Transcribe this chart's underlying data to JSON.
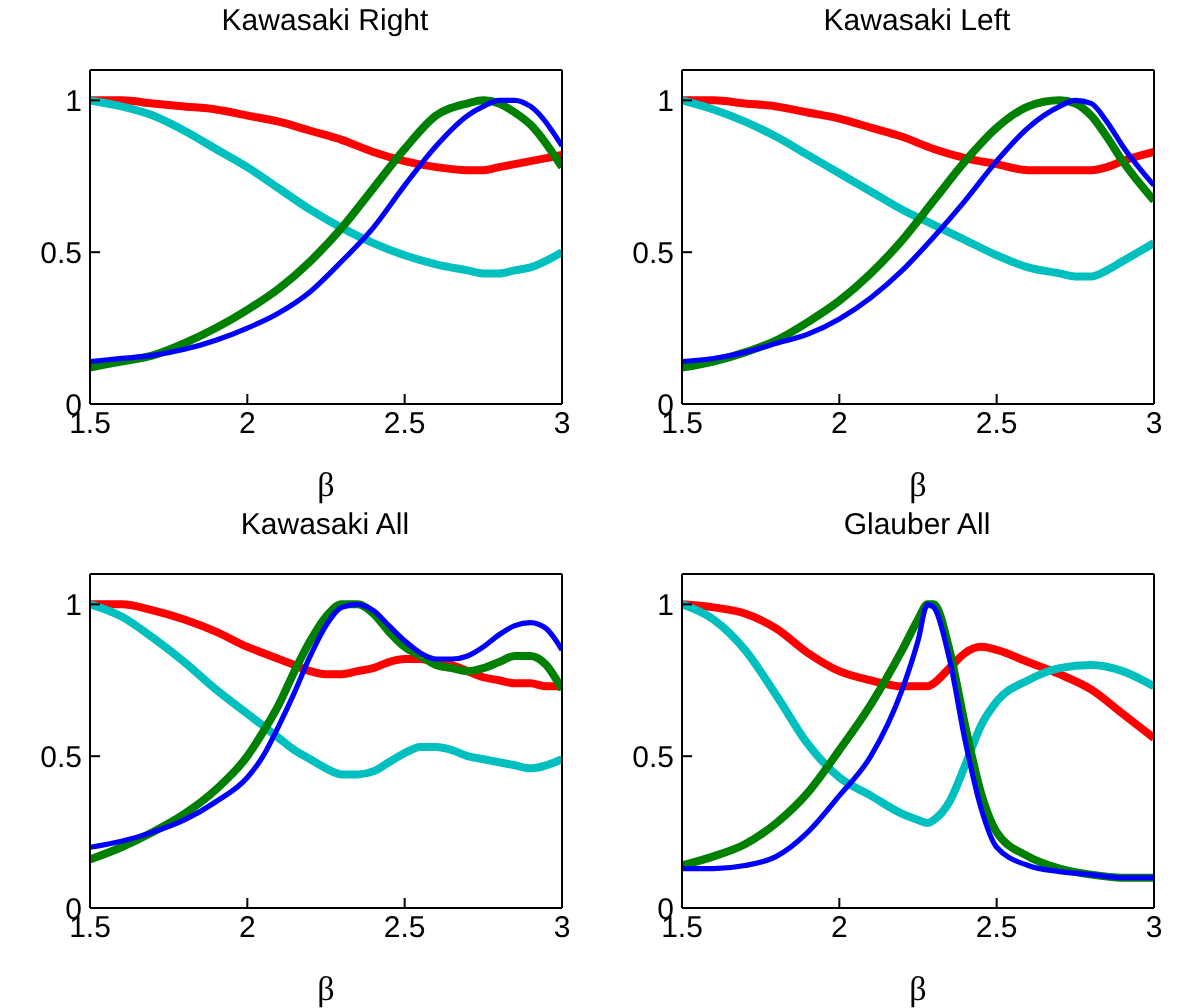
{
  "chart_data": [
    {
      "type": "line",
      "title": "Kawasaki Right",
      "xlabel": "β",
      "xlim": [
        1.5,
        3
      ],
      "xticks": [
        1.5,
        2,
        2.5,
        3
      ],
      "ylim": [
        0,
        1.1
      ],
      "yticks": [
        0,
        0.5,
        1
      ],
      "grid": false,
      "legend": false,
      "marker": "none",
      "line_style": "solid",
      "x": [
        1.5,
        1.6,
        1.7,
        1.8,
        1.9,
        2.0,
        2.1,
        2.2,
        2.3,
        2.4,
        2.5,
        2.6,
        2.7,
        2.75,
        2.8,
        2.85,
        2.9,
        3.0
      ],
      "series": [
        {
          "color": "#ff0000",
          "values": [
            1,
            1,
            0.99,
            0.98,
            0.97,
            0.95,
            0.93,
            0.9,
            0.87,
            0.83,
            0.8,
            0.78,
            0.77,
            0.77,
            0.78,
            0.79,
            0.8,
            0.82
          ]
        },
        {
          "color": "#00bfbf",
          "values": [
            1,
            0.98,
            0.95,
            0.9,
            0.84,
            0.78,
            0.71,
            0.64,
            0.58,
            0.53,
            0.49,
            0.46,
            0.44,
            0.43,
            0.43,
            0.44,
            0.45,
            0.5
          ]
        },
        {
          "color": "#008000",
          "values": [
            0.12,
            0.14,
            0.16,
            0.2,
            0.25,
            0.31,
            0.38,
            0.47,
            0.58,
            0.71,
            0.84,
            0.95,
            0.99,
            1,
            0.99,
            0.96,
            0.92,
            0.78
          ]
        },
        {
          "color": "#0000ff",
          "values": [
            0.14,
            0.15,
            0.16,
            0.18,
            0.21,
            0.25,
            0.3,
            0.37,
            0.47,
            0.58,
            0.72,
            0.85,
            0.95,
            0.98,
            1,
            1,
            0.98,
            0.85
          ]
        }
      ]
    },
    {
      "type": "line",
      "title": "Kawasaki Left",
      "xlabel": "β",
      "xlim": [
        1.5,
        3
      ],
      "xticks": [
        1.5,
        2,
        2.5,
        3
      ],
      "ylim": [
        0,
        1.1
      ],
      "yticks": [
        0,
        0.5,
        1
      ],
      "grid": false,
      "legend": false,
      "marker": "none",
      "line_style": "solid",
      "x": [
        1.5,
        1.6,
        1.7,
        1.8,
        1.9,
        2.0,
        2.1,
        2.2,
        2.3,
        2.4,
        2.5,
        2.6,
        2.7,
        2.75,
        2.8,
        2.85,
        2.9,
        3.0
      ],
      "series": [
        {
          "color": "#ff0000",
          "values": [
            1,
            1,
            0.99,
            0.98,
            0.96,
            0.94,
            0.91,
            0.88,
            0.84,
            0.81,
            0.79,
            0.77,
            0.77,
            0.77,
            0.77,
            0.78,
            0.8,
            0.83
          ]
        },
        {
          "color": "#00bfbf",
          "values": [
            1,
            0.97,
            0.93,
            0.88,
            0.82,
            0.76,
            0.7,
            0.64,
            0.59,
            0.54,
            0.49,
            0.45,
            0.43,
            0.42,
            0.42,
            0.44,
            0.47,
            0.53
          ]
        },
        {
          "color": "#008000",
          "values": [
            0.12,
            0.14,
            0.17,
            0.21,
            0.27,
            0.34,
            0.43,
            0.54,
            0.67,
            0.8,
            0.91,
            0.98,
            1,
            0.99,
            0.95,
            0.88,
            0.8,
            0.67
          ]
        },
        {
          "color": "#0000ff",
          "values": [
            0.14,
            0.15,
            0.17,
            0.2,
            0.23,
            0.28,
            0.35,
            0.44,
            0.55,
            0.67,
            0.8,
            0.91,
            0.98,
            1,
            0.99,
            0.93,
            0.85,
            0.72
          ]
        }
      ]
    },
    {
      "type": "line",
      "title": "Kawasaki All",
      "xlabel": "β",
      "xlim": [
        1.5,
        3
      ],
      "xticks": [
        1.5,
        2,
        2.5,
        3
      ],
      "ylim": [
        0,
        1.1
      ],
      "yticks": [
        0,
        0.5,
        1
      ],
      "grid": false,
      "legend": false,
      "marker": "none",
      "line_style": "solid",
      "x": [
        1.5,
        1.6,
        1.7,
        1.8,
        1.9,
        2.0,
        2.05,
        2.1,
        2.15,
        2.2,
        2.25,
        2.3,
        2.35,
        2.4,
        2.45,
        2.5,
        2.55,
        2.6,
        2.65,
        2.7,
        2.75,
        2.8,
        2.85,
        2.9,
        2.95,
        3.0
      ],
      "series": [
        {
          "color": "#ff0000",
          "values": [
            1,
            1,
            0.98,
            0.95,
            0.91,
            0.86,
            0.84,
            0.82,
            0.8,
            0.78,
            0.77,
            0.77,
            0.78,
            0.79,
            0.81,
            0.82,
            0.82,
            0.81,
            0.8,
            0.78,
            0.76,
            0.75,
            0.74,
            0.74,
            0.73,
            0.73
          ]
        },
        {
          "color": "#00bfbf",
          "values": [
            1,
            0.96,
            0.89,
            0.81,
            0.72,
            0.64,
            0.6,
            0.56,
            0.52,
            0.49,
            0.46,
            0.44,
            0.44,
            0.45,
            0.48,
            0.51,
            0.53,
            0.53,
            0.52,
            0.5,
            0.49,
            0.48,
            0.47,
            0.46,
            0.47,
            0.49
          ]
        },
        {
          "color": "#008000",
          "values": [
            0.16,
            0.2,
            0.25,
            0.31,
            0.39,
            0.5,
            0.58,
            0.67,
            0.78,
            0.88,
            0.96,
            1,
            1,
            0.97,
            0.91,
            0.86,
            0.83,
            0.8,
            0.79,
            0.78,
            0.79,
            0.81,
            0.83,
            0.83,
            0.8,
            0.72
          ]
        },
        {
          "color": "#0000ff",
          "values": [
            0.2,
            0.22,
            0.25,
            0.29,
            0.35,
            0.43,
            0.5,
            0.6,
            0.71,
            0.83,
            0.93,
            0.99,
            1,
            0.98,
            0.93,
            0.88,
            0.84,
            0.82,
            0.82,
            0.83,
            0.86,
            0.9,
            0.93,
            0.94,
            0.92,
            0.85
          ]
        }
      ]
    },
    {
      "type": "line",
      "title": "Glauber All",
      "xlabel": "β",
      "xlim": [
        1.5,
        3
      ],
      "xticks": [
        1.5,
        2,
        2.5,
        3
      ],
      "ylim": [
        0,
        1.1
      ],
      "yticks": [
        0,
        0.5,
        1
      ],
      "grid": false,
      "legend": false,
      "marker": "none",
      "line_style": "solid",
      "x": [
        1.5,
        1.6,
        1.7,
        1.8,
        1.9,
        2.0,
        2.1,
        2.2,
        2.25,
        2.28,
        2.3,
        2.35,
        2.4,
        2.45,
        2.5,
        2.6,
        2.7,
        2.8,
        2.9,
        3.0
      ],
      "series": [
        {
          "color": "#ff0000",
          "values": [
            1,
            0.99,
            0.97,
            0.92,
            0.84,
            0.78,
            0.75,
            0.73,
            0.73,
            0.73,
            0.74,
            0.79,
            0.84,
            0.86,
            0.85,
            0.81,
            0.77,
            0.72,
            0.64,
            0.56
          ]
        },
        {
          "color": "#00bfbf",
          "values": [
            1,
            0.95,
            0.85,
            0.7,
            0.54,
            0.43,
            0.37,
            0.31,
            0.29,
            0.28,
            0.29,
            0.35,
            0.47,
            0.6,
            0.68,
            0.75,
            0.79,
            0.8,
            0.78,
            0.73
          ]
        },
        {
          "color": "#008000",
          "values": [
            0.14,
            0.17,
            0.21,
            0.28,
            0.38,
            0.52,
            0.67,
            0.85,
            0.95,
            1,
            1,
            0.85,
            0.6,
            0.38,
            0.25,
            0.17,
            0.13,
            0.11,
            0.1,
            0.1
          ]
        },
        {
          "color": "#0000ff",
          "values": [
            0.13,
            0.13,
            0.14,
            0.17,
            0.25,
            0.37,
            0.5,
            0.72,
            0.88,
            1,
            0.99,
            0.82,
            0.55,
            0.33,
            0.2,
            0.14,
            0.12,
            0.11,
            0.1,
            0.1
          ]
        }
      ]
    }
  ]
}
